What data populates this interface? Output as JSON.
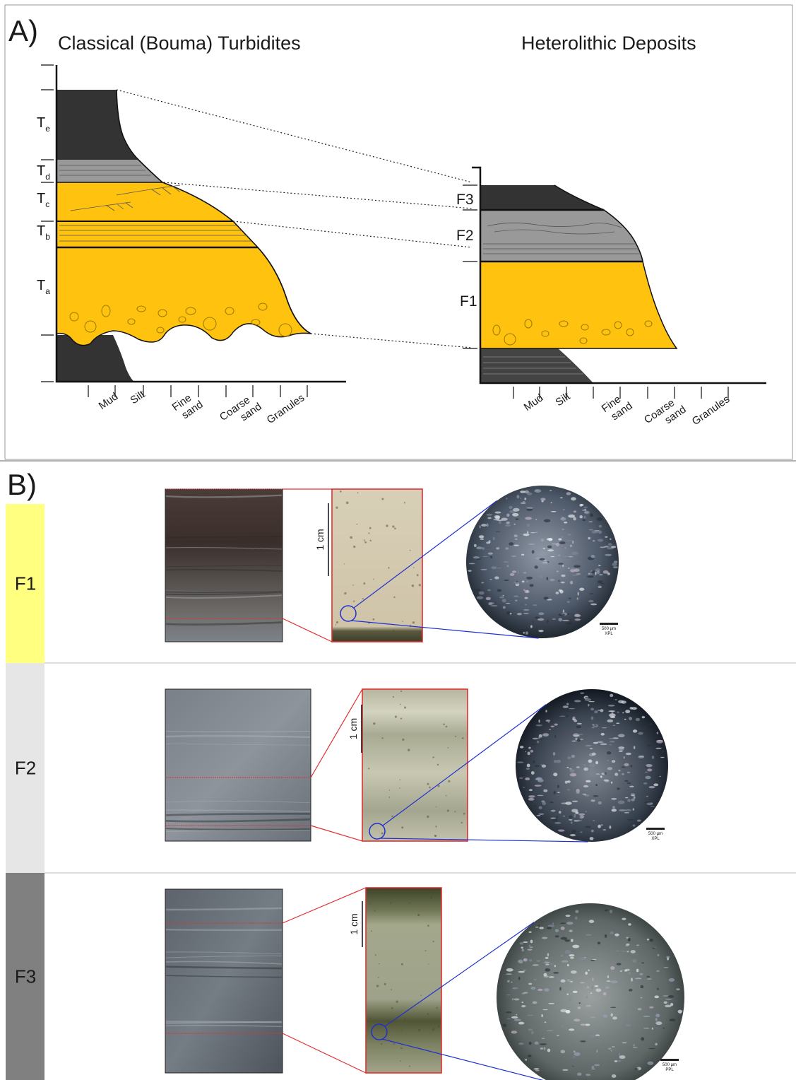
{
  "panel_a": {
    "label": "A)",
    "left_title": "Classical (Bouma) Turbidites",
    "right_title": "Heterolithic Deposits",
    "bouma_units": [
      {
        "main": "T",
        "sub": "e"
      },
      {
        "main": "T",
        "sub": "d"
      },
      {
        "main": "T",
        "sub": "c"
      },
      {
        "main": "T",
        "sub": "b"
      },
      {
        "main": "T",
        "sub": "a"
      }
    ],
    "left_grain_sizes": [
      [
        "Mud"
      ],
      [
        "Silt"
      ],
      [
        "Fine",
        "sand"
      ],
      [
        "Coarse",
        "sand"
      ],
      [
        "Granules"
      ]
    ],
    "right_facies": [
      "F3",
      "F2",
      "F1"
    ],
    "right_grain_sizes": [
      [
        "Mud"
      ],
      [
        "Silt"
      ],
      [
        "Fine",
        "sand"
      ],
      [
        "Coarse",
        "sand"
      ],
      [
        "Granules"
      ]
    ]
  },
  "panel_b": {
    "label": "B)",
    "rows": [
      {
        "facies": "F1",
        "core_scale": "1 cm",
        "micro_scale": "500 µm",
        "light": "XPL"
      },
      {
        "facies": "F2",
        "core_scale": "1 cm",
        "micro_scale": "500 µm",
        "light": "XPL"
      },
      {
        "facies": "F3",
        "core_scale": "1 cm",
        "micro_scale": "500 µm",
        "light": "PPL"
      }
    ]
  }
}
